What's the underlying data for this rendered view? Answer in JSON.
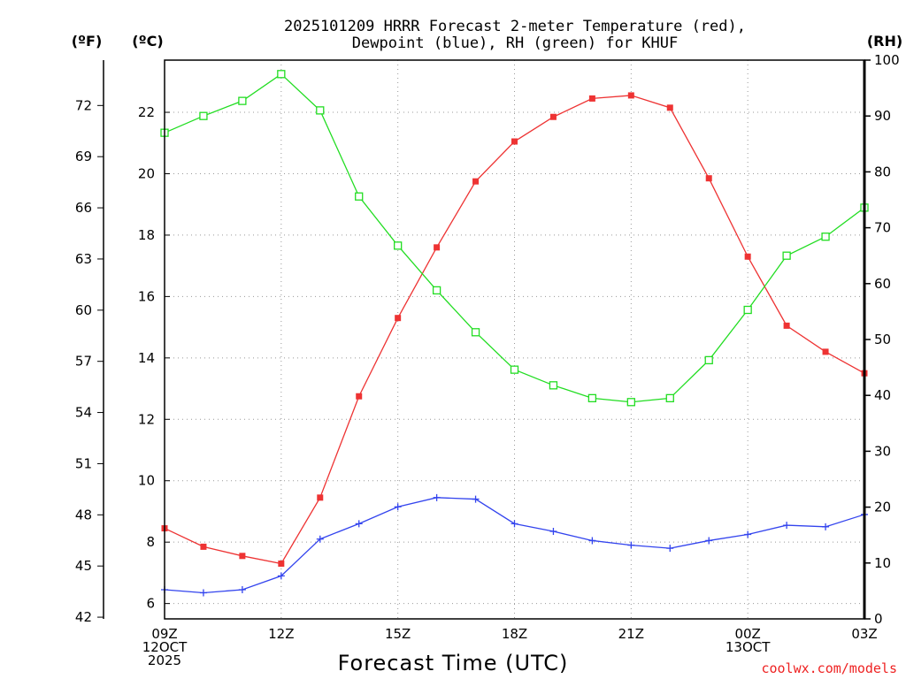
{
  "chart_data": {
    "type": "line",
    "title_line1": "2025101209 HRRR Forecast 2-meter Temperature (red),",
    "title_line2": "Dewpoint (blue), RH (green) for KHUF",
    "xlabel": "Forecast Time (UTC)",
    "credit": "coolwx.com/models",
    "units": {
      "fahrenheit": "(ºF)",
      "celsius": "(ºC)",
      "rh": "(RH)"
    },
    "x_hours": [
      0,
      1,
      2,
      3,
      4,
      5,
      6,
      7,
      8,
      9,
      10,
      11,
      12,
      13,
      14,
      15,
      16,
      17,
      18
    ],
    "x_ticks": [
      {
        "hour": 0,
        "lines": [
          "09Z",
          "12OCT",
          "2025"
        ]
      },
      {
        "hour": 3,
        "lines": [
          "12Z"
        ]
      },
      {
        "hour": 6,
        "lines": [
          "15Z"
        ]
      },
      {
        "hour": 9,
        "lines": [
          "18Z"
        ]
      },
      {
        "hour": 12,
        "lines": [
          "21Z"
        ]
      },
      {
        "hour": 15,
        "lines": [
          "00Z",
          "13OCT"
        ]
      },
      {
        "hour": 18,
        "lines": [
          "03Z"
        ]
      }
    ],
    "celsius_axis": {
      "ylim": [
        5.5,
        23.7
      ],
      "ticks": [
        6,
        8,
        10,
        12,
        14,
        16,
        18,
        20,
        22
      ]
    },
    "fahrenheit_ticks": [
      42,
      45,
      48,
      51,
      54,
      57,
      60,
      63,
      66,
      69,
      72
    ],
    "rh_axis": {
      "ylim": [
        0,
        100
      ],
      "ticks": [
        0,
        10,
        20,
        30,
        40,
        50,
        60,
        70,
        80,
        90,
        100
      ]
    },
    "series": [
      {
        "name": "Temperature",
        "axis": "celsius",
        "color": "#ee3333",
        "marker": "filled-square",
        "values": [
          8.45,
          7.85,
          7.55,
          7.3,
          9.45,
          12.75,
          15.3,
          17.6,
          19.75,
          21.05,
          21.85,
          22.45,
          22.55,
          22.15,
          19.85,
          17.3,
          15.05,
          14.2,
          13.5
        ]
      },
      {
        "name": "Dewpoint",
        "axis": "celsius",
        "color": "#3344ee",
        "marker": "plus",
        "values": [
          6.45,
          6.35,
          6.45,
          6.9,
          8.1,
          8.6,
          9.15,
          9.45,
          9.4,
          8.6,
          8.35,
          8.05,
          7.9,
          7.8,
          8.05,
          8.25,
          8.55,
          8.5,
          8.9
        ]
      },
      {
        "name": "RH",
        "axis": "rh",
        "color": "#22dd22",
        "marker": "open-square",
        "values": [
          87,
          90,
          92.7,
          97.5,
          91,
          75.6,
          66.8,
          58.8,
          51.3,
          44.6,
          41.8,
          39.5,
          38.8,
          39.5,
          46.3,
          55.3,
          65,
          68.4,
          73.6
        ]
      }
    ]
  }
}
